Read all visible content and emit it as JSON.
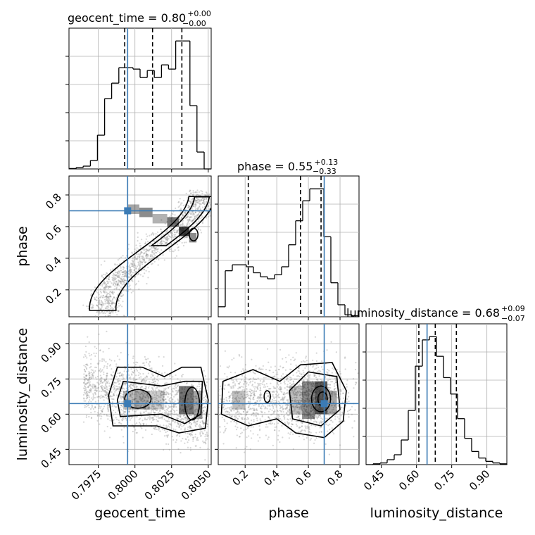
{
  "chart_data": {
    "type": "corner",
    "parameters": [
      "geocent_time",
      "phase",
      "luminosity_distance"
    ],
    "truths": {
      "geocent_time": 0.7995,
      "phase": 0.7,
      "luminosity_distance": 0.645
    },
    "colors": {
      "truth": "#3b7bb5",
      "hist": "#000000",
      "grid": "#b0b0b0",
      "scatter": "#8c8c8c"
    },
    "grid": true,
    "titles": {
      "geocent_time": {
        "prefix": "geocent_time = 0.80",
        "upper": "+0.00",
        "lower": "−0.00"
      },
      "phase": {
        "prefix": "phase = 0.55",
        "upper": "+0.13",
        "lower": "−0.33"
      },
      "luminosity_distance": {
        "prefix": "luminosity_distance = 0.68",
        "upper": "+0.09",
        "lower": "−0.07"
      }
    },
    "axes": {
      "geocent_time": {
        "label": "geocent_time",
        "range": [
          0.7955,
          0.8052
        ],
        "ticks": [
          0.7975,
          0.8,
          0.8025,
          0.805
        ],
        "tick_labels": [
          "0.7975",
          "0.8000",
          "0.8025",
          "0.8050"
        ]
      },
      "phase": {
        "label": "phase",
        "range": [
          0.03,
          0.92
        ],
        "ticks": [
          0.2,
          0.4,
          0.6,
          0.8
        ],
        "tick_labels": [
          "0.2",
          "0.4",
          "0.6",
          "0.8"
        ]
      },
      "luminosity_distance": {
        "label": "luminosity_distance",
        "range": [
          0.385,
          0.985
        ],
        "ticks": [
          0.45,
          0.6,
          0.75,
          0.9
        ],
        "tick_labels": [
          "0.45",
          "0.60",
          "0.75",
          "0.90"
        ]
      }
    },
    "histograms": {
      "geocent_time": {
        "edges": [
          0.7955,
          0.79599,
          0.79647,
          0.79696,
          0.79744,
          0.79793,
          0.79841,
          0.7989,
          0.79938,
          0.79987,
          0.80035,
          0.80084,
          0.80132,
          0.80181,
          0.80229,
          0.80278,
          0.80326,
          0.80375,
          0.80423,
          0.80472,
          0.8052
        ],
        "counts": [
          0.3,
          1,
          2,
          6,
          24,
          50,
          61,
          72,
          72,
          71,
          65,
          70,
          65,
          74,
          71,
          91,
          91,
          45,
          12,
          0
        ],
        "quantiles": [
          0.7993,
          0.8012,
          0.8032
        ]
      },
      "phase": {
        "edges": [
          0.03,
          0.0745,
          0.119,
          0.1635,
          0.208,
          0.2525,
          0.297,
          0.3415,
          0.386,
          0.4305,
          0.475,
          0.5195,
          0.564,
          0.6085,
          0.653,
          0.6975,
          0.742,
          0.7865,
          0.831,
          0.8755,
          0.92
        ],
        "counts": [
          5,
          23,
          26,
          26,
          25,
          22,
          20,
          19,
          21,
          25,
          36,
          48,
          58,
          64,
          64,
          40,
          17,
          6,
          1,
          0.5
        ],
        "quantiles": [
          0.22,
          0.55,
          0.68
        ]
      },
      "luminosity_distance": {
        "edges": [
          0.385,
          0.415,
          0.445,
          0.475,
          0.505,
          0.535,
          0.565,
          0.595,
          0.625,
          0.655,
          0.685,
          0.715,
          0.745,
          0.775,
          0.805,
          0.835,
          0.865,
          0.895,
          0.925,
          0.955,
          0.985
        ],
        "counts": [
          0,
          0.5,
          1,
          3,
          6,
          15,
          33,
          60,
          76,
          78,
          66,
          53,
          43,
          28,
          16,
          8,
          4,
          2,
          1,
          0.5
        ],
        "quantiles": [
          0.61,
          0.68,
          0.77
        ]
      }
    }
  }
}
